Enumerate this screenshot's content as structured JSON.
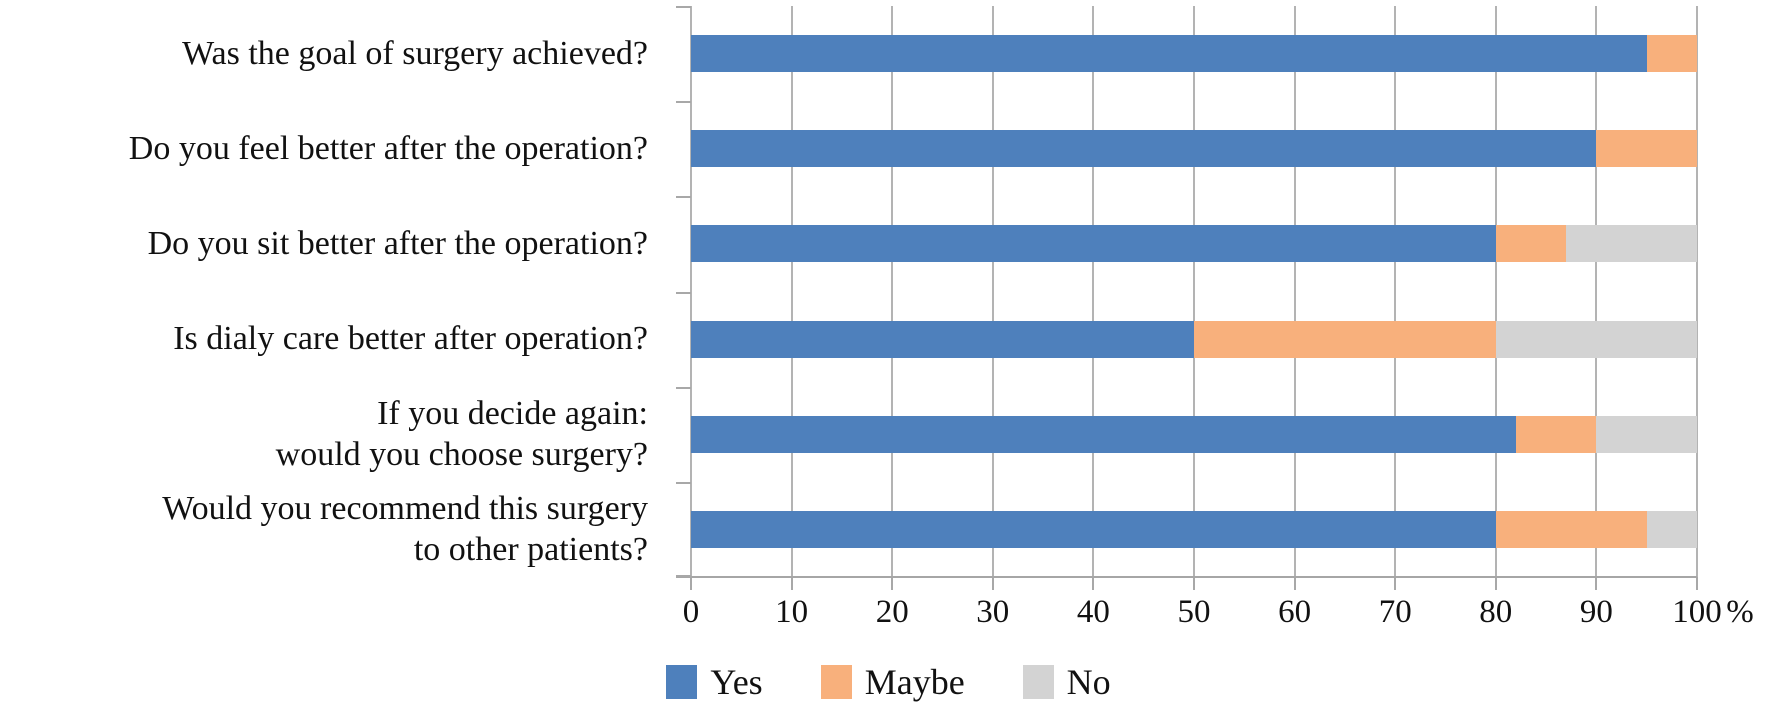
{
  "chart_data": {
    "type": "bar",
    "orientation": "horizontal",
    "stacked": true,
    "title": "",
    "categories": [
      [
        "Was the goal of surgery achieved?"
      ],
      [
        "Do you feel better after the operation?"
      ],
      [
        "Do you sit better after the operation?"
      ],
      [
        "Is dialy care better after operation?"
      ],
      [
        "If you decide again:",
        "would you choose surgery?"
      ],
      [
        "Would you recommend this surgery",
        "to other patients?"
      ]
    ],
    "series": [
      {
        "name": "Yes",
        "color": "#4E80BC",
        "values": [
          95,
          90,
          80,
          50,
          82,
          80
        ]
      },
      {
        "name": "Maybe",
        "color": "#F8B07C",
        "values": [
          5,
          10,
          7,
          30,
          8,
          15
        ]
      },
      {
        "name": "No",
        "color": "#D3D3D3",
        "values": [
          0,
          0,
          13,
          20,
          10,
          5
        ]
      }
    ],
    "x_axis": {
      "min": 0,
      "max": 100,
      "ticks": [
        0,
        10,
        20,
        30,
        40,
        50,
        60,
        70,
        80,
        90,
        100
      ],
      "unit": "%"
    },
    "grid": true,
    "legend_position": "bottom",
    "colors_meta": {
      "gridline": "#B3B3B3",
      "axis_line": "#A6A6A6",
      "text": "#111111",
      "background": "#FFFFFF"
    }
  }
}
